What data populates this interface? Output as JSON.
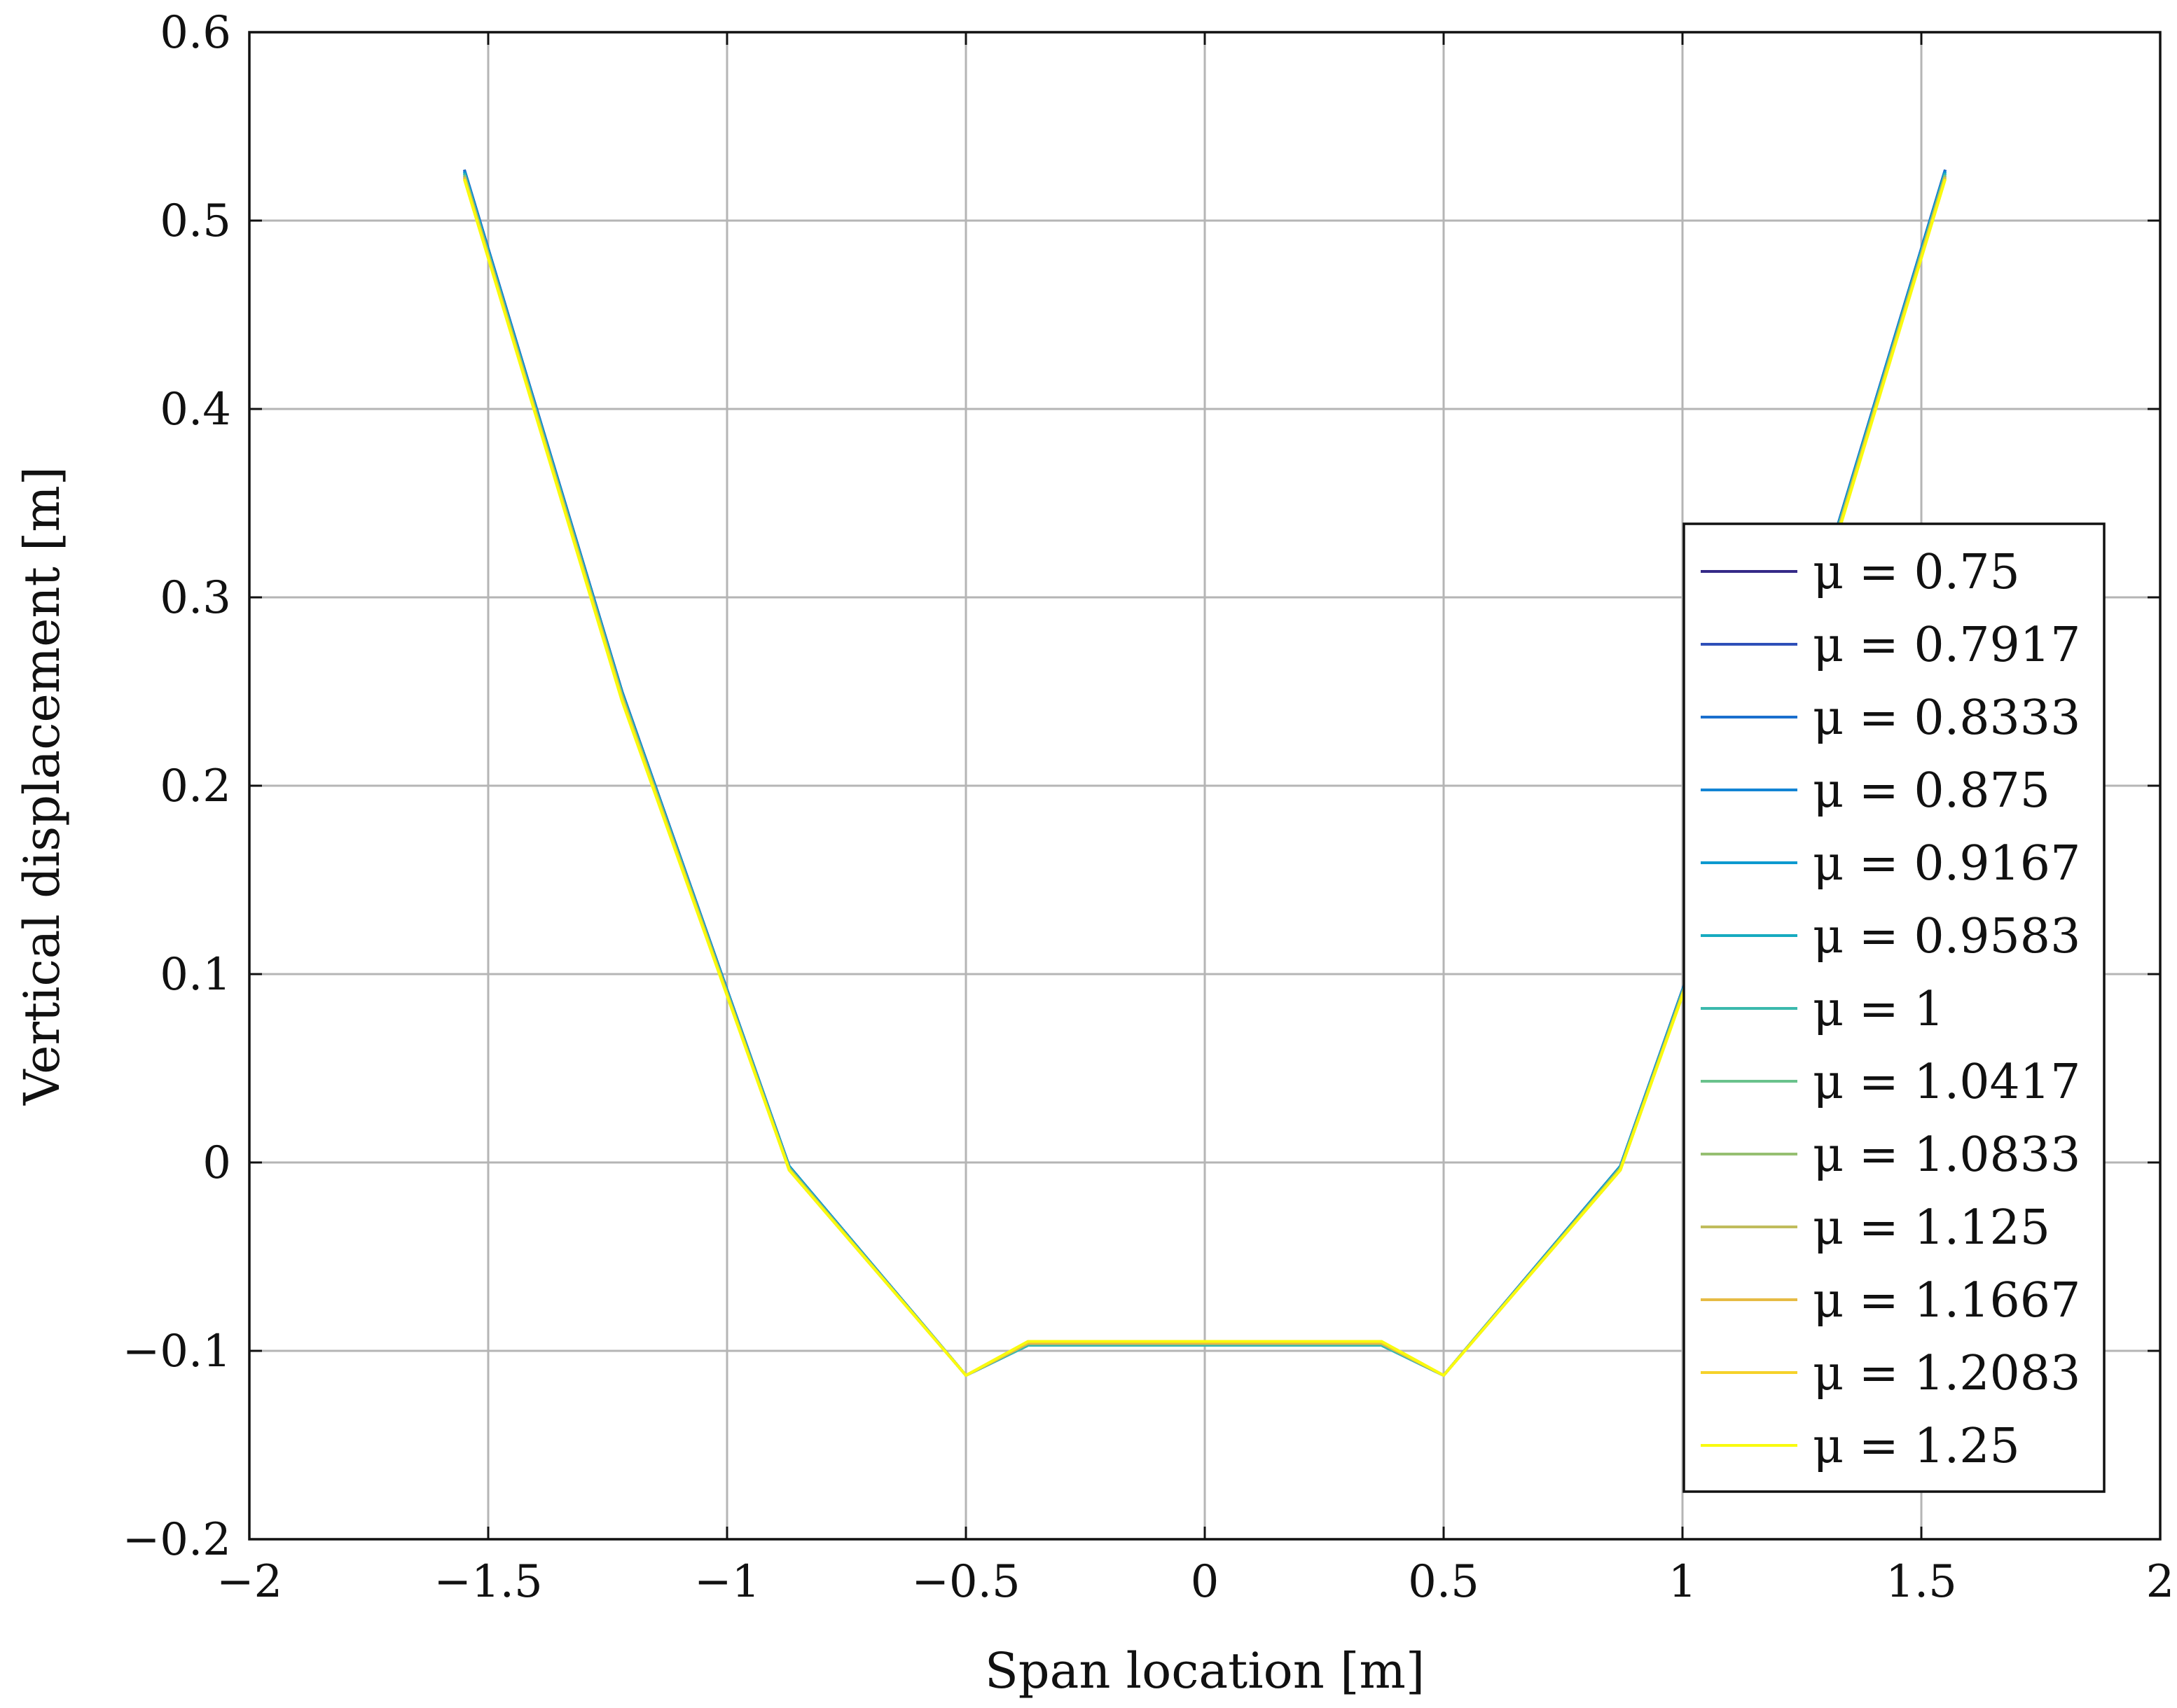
{
  "chart_data": {
    "type": "line",
    "title": "",
    "xlabel": "Span location [m]",
    "ylabel": "Vertical displacement [m]",
    "xlim": [
      -2,
      2
    ],
    "ylim": [
      -0.2,
      0.6
    ],
    "xticks": [
      -2,
      -1.5,
      -1,
      -0.5,
      0,
      0.5,
      1,
      1.5,
      2
    ],
    "yticks": [
      -0.2,
      -0.1,
      0,
      0.1,
      0.2,
      0.3,
      0.4,
      0.5,
      0.6
    ],
    "xtick_labels": [
      "−2",
      "−1.5",
      "−1",
      "−0.5",
      "0",
      "0.5",
      "1",
      "1.5",
      "2"
    ],
    "ytick_labels": [
      "−0.2",
      "−0.1",
      "0",
      "0.1",
      "0.2",
      "0.3",
      "0.4",
      "0.5",
      "0.6"
    ],
    "grid": true,
    "legend_position": "right",
    "x": [
      -1.55,
      -1.22,
      -0.87,
      -0.5,
      -0.37,
      0.37,
      0.5,
      0.87,
      1.22,
      1.55
    ],
    "series": [
      {
        "name": "μ = 0.75",
        "color": "#352a87",
        "values": [
          0.527,
          0.25,
          -0.002,
          -0.113,
          -0.097,
          -0.097,
          -0.113,
          -0.002,
          0.25,
          0.527
        ]
      },
      {
        "name": "μ = 0.7917",
        "color": "#2e4fb8",
        "values": [
          0.527,
          0.25,
          -0.002,
          -0.113,
          -0.097,
          -0.097,
          -0.113,
          -0.002,
          0.25,
          0.527
        ]
      },
      {
        "name": "μ = 0.8333",
        "color": "#1a6fce",
        "values": [
          0.527,
          0.25,
          -0.002,
          -0.113,
          -0.097,
          -0.097,
          -0.113,
          -0.002,
          0.25,
          0.527
        ]
      },
      {
        "name": "μ = 0.875",
        "color": "#1284d4",
        "values": [
          0.526,
          0.249,
          -0.002,
          -0.113,
          -0.097,
          -0.097,
          -0.113,
          -0.002,
          0.249,
          0.526
        ]
      },
      {
        "name": "μ = 0.9167",
        "color": "#0d99cf",
        "values": [
          0.526,
          0.249,
          -0.002,
          -0.113,
          -0.097,
          -0.097,
          -0.113,
          -0.002,
          0.249,
          0.526
        ]
      },
      {
        "name": "μ = 0.9583",
        "color": "#17abc0",
        "values": [
          0.525,
          0.249,
          -0.003,
          -0.113,
          -0.097,
          -0.097,
          -0.113,
          -0.003,
          0.249,
          0.525
        ]
      },
      {
        "name": "μ = 1",
        "color": "#3bb9ad",
        "values": [
          0.525,
          0.248,
          -0.003,
          -0.113,
          -0.097,
          -0.097,
          -0.113,
          -0.003,
          0.248,
          0.525
        ]
      },
      {
        "name": "μ = 1.0417",
        "color": "#6ac28c",
        "values": [
          0.524,
          0.248,
          -0.003,
          -0.113,
          -0.096,
          -0.096,
          -0.113,
          -0.003,
          0.248,
          0.524
        ]
      },
      {
        "name": "μ = 1.0833",
        "color": "#96bf71",
        "values": [
          0.524,
          0.247,
          -0.003,
          -0.113,
          -0.096,
          -0.096,
          -0.113,
          -0.003,
          0.247,
          0.524
        ]
      },
      {
        "name": "μ = 1.125",
        "color": "#c0bc5c",
        "values": [
          0.523,
          0.247,
          -0.004,
          -0.113,
          -0.096,
          -0.096,
          -0.113,
          -0.004,
          0.247,
          0.523
        ]
      },
      {
        "name": "μ = 1.1667",
        "color": "#e6bb44",
        "values": [
          0.523,
          0.246,
          -0.004,
          -0.113,
          -0.096,
          -0.096,
          -0.113,
          -0.004,
          0.246,
          0.523
        ]
      },
      {
        "name": "μ = 1.2083",
        "color": "#f5d22a",
        "values": [
          0.522,
          0.246,
          -0.004,
          -0.113,
          -0.095,
          -0.095,
          -0.113,
          -0.004,
          0.246,
          0.522
        ]
      },
      {
        "name": "μ = 1.25",
        "color": "#f9fb0e",
        "values": [
          0.522,
          0.245,
          -0.004,
          -0.113,
          -0.095,
          -0.095,
          -0.113,
          -0.004,
          0.245,
          0.522
        ]
      }
    ]
  }
}
